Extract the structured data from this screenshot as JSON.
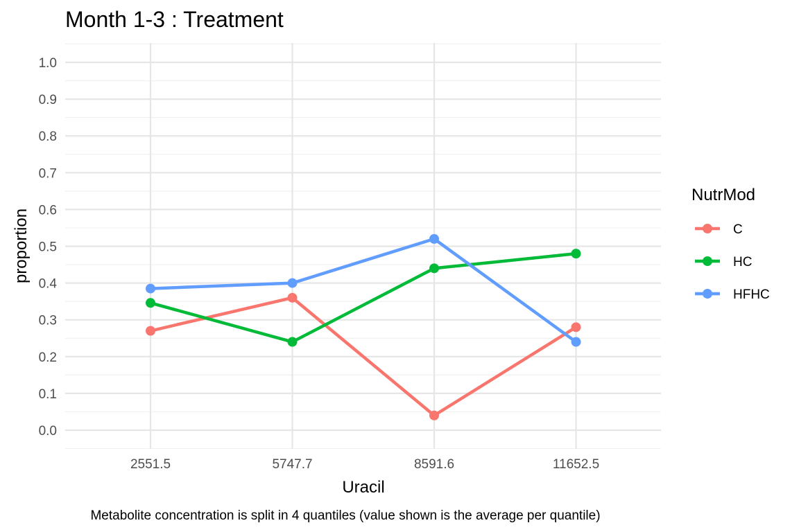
{
  "chart_data": {
    "type": "line",
    "title": "Month 1-3 : Treatment",
    "xlabel": "Uracil",
    "ylabel": "proportion",
    "caption": "Metabolite concentration is split in 4 quantiles (value shown is the average per quantile)",
    "categories": [
      "2551.5",
      "5747.7",
      "8591.6",
      "11652.5"
    ],
    "ylim": [
      0,
      1
    ],
    "yticks": [
      "0.0",
      "0.1",
      "0.2",
      "0.3",
      "0.4",
      "0.5",
      "0.6",
      "0.7",
      "0.8",
      "0.9",
      "1.0"
    ],
    "grid": true,
    "legend": {
      "title": "NutrMod",
      "placement": "right"
    },
    "series": [
      {
        "name": "C",
        "color": "#F8766D",
        "values": [
          0.27,
          0.36,
          0.04,
          0.28
        ]
      },
      {
        "name": "HC",
        "color": "#00BA38",
        "values": [
          0.346,
          0.24,
          0.44,
          0.48
        ]
      },
      {
        "name": "HFHC",
        "color": "#619CFF",
        "values": [
          0.385,
          0.4,
          0.52,
          0.24
        ]
      }
    ]
  }
}
